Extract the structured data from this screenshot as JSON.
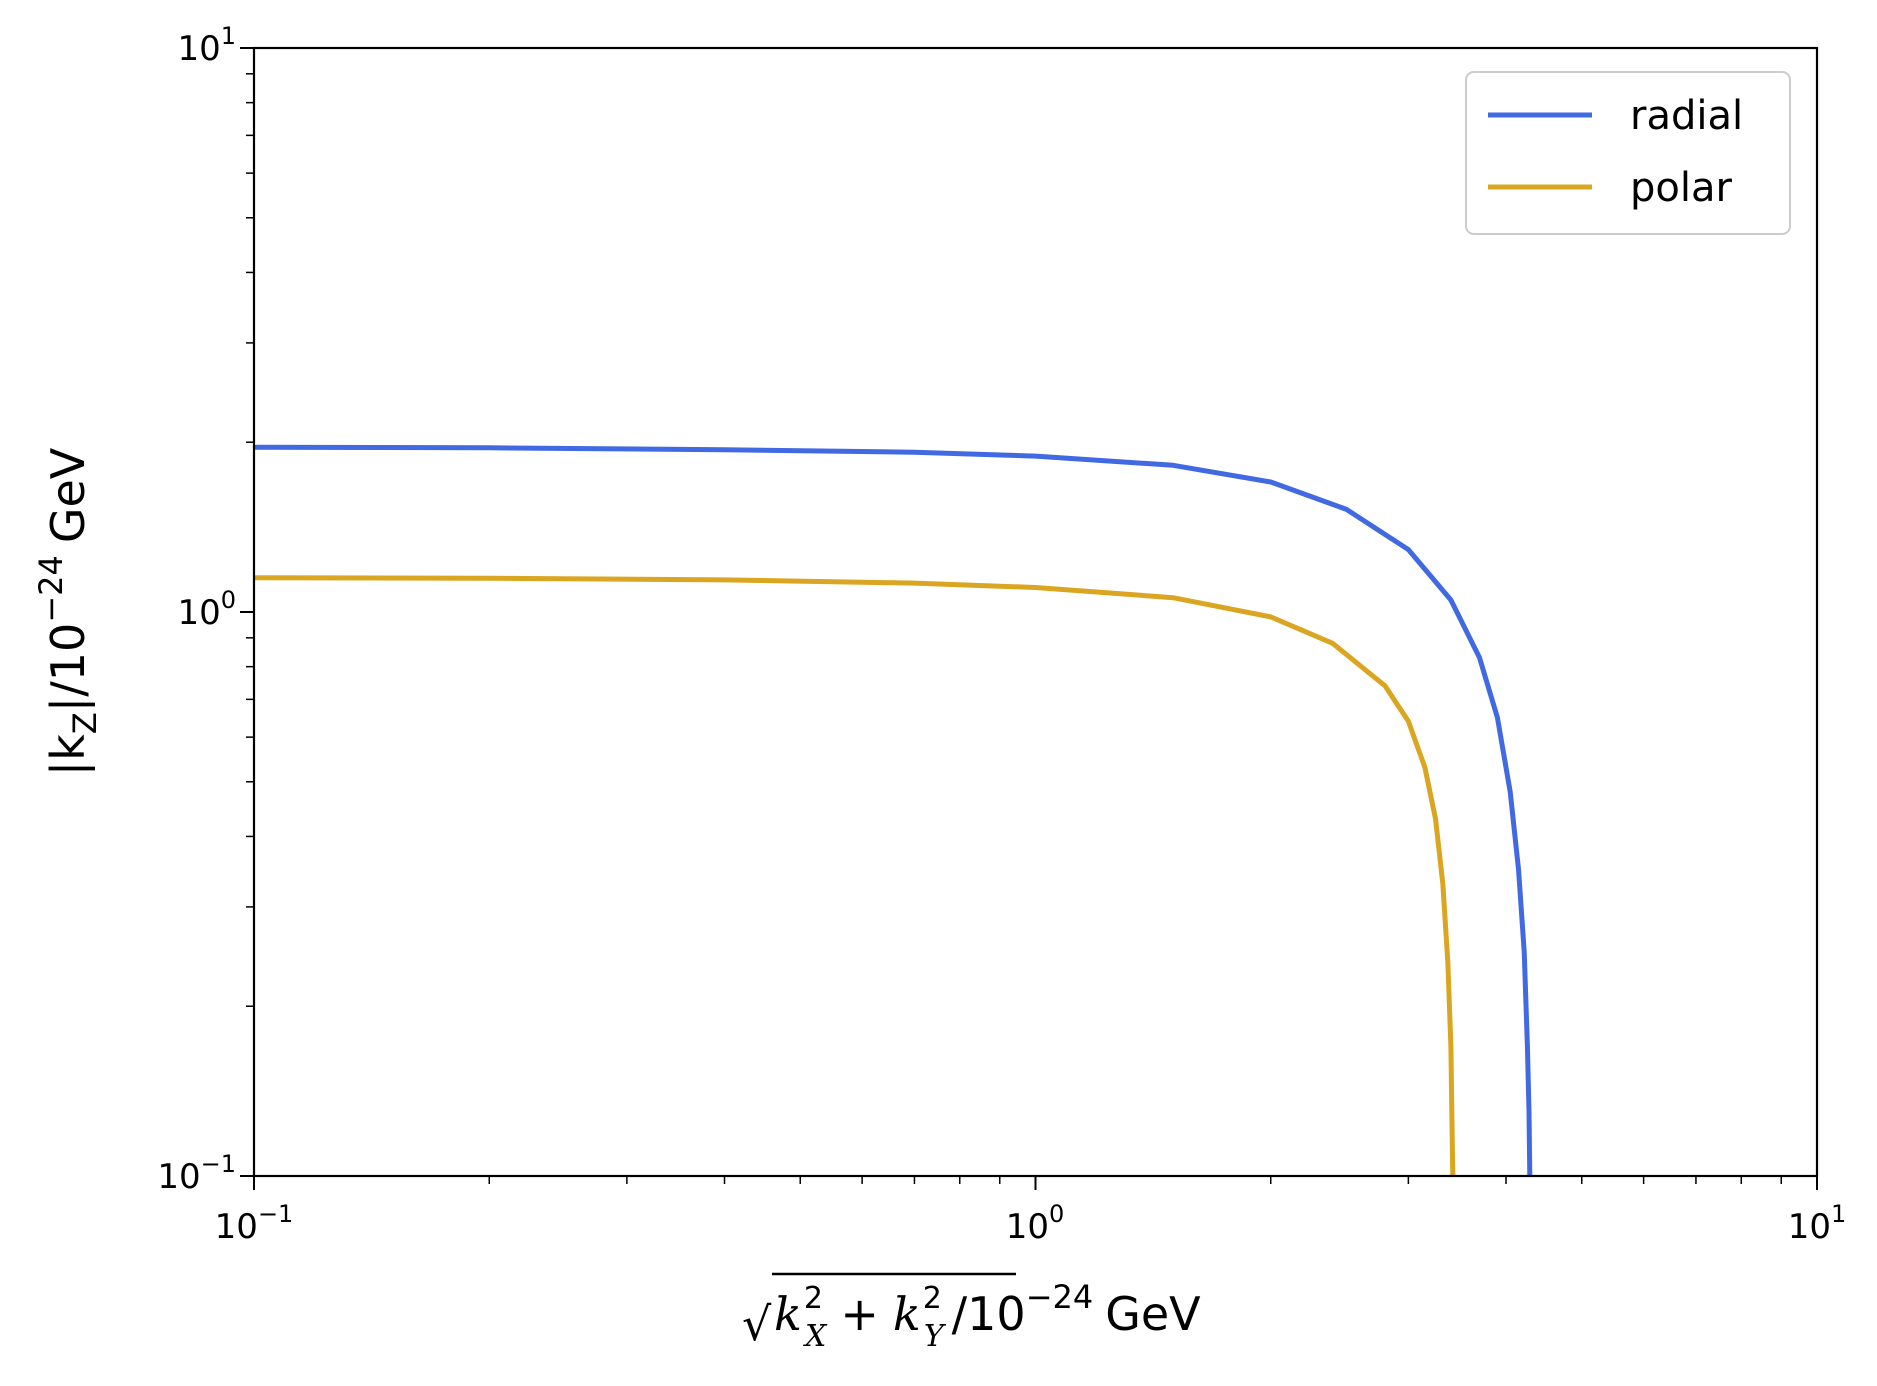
{
  "chart_data": {
    "type": "line",
    "title": "",
    "xscale": "log",
    "yscale": "log",
    "xlim": [
      0.1,
      10
    ],
    "ylim": [
      0.1,
      10
    ],
    "grid": false,
    "legend_position": "top-right",
    "xlabel": {
      "rad": "√",
      "k1": "k",
      "s1": "X",
      "p1": "2",
      "plus": "+",
      "k2": "k",
      "s2": "Y",
      "p2": "2",
      "unit": "/10",
      "exp": "−24",
      "gev": "GeV"
    },
    "ylabel": {
      "pre": "|k",
      "sub": "Z",
      "mid": "|/10",
      "exp": "−24",
      "gev": "GeV"
    },
    "x_ticks": [
      {
        "value": 0.1,
        "base": "10",
        "exp": "−1"
      },
      {
        "value": 1,
        "base": "10",
        "exp": "0"
      },
      {
        "value": 10,
        "base": "10",
        "exp": "1"
      }
    ],
    "y_ticks": [
      {
        "value": 0.1,
        "base": "10",
        "exp": "−1"
      },
      {
        "value": 1,
        "base": "10",
        "exp": "0"
      },
      {
        "value": 10,
        "base": "10",
        "exp": "1"
      }
    ],
    "series": [
      {
        "name": "radial",
        "color": "#4169E1",
        "points": [
          [
            0.1,
            1.96
          ],
          [
            0.2,
            1.955
          ],
          [
            0.4,
            1.94
          ],
          [
            0.7,
            1.92
          ],
          [
            1.0,
            1.89
          ],
          [
            1.5,
            1.82
          ],
          [
            2.0,
            1.7
          ],
          [
            2.5,
            1.52
          ],
          [
            3.0,
            1.29
          ],
          [
            3.4,
            1.05
          ],
          [
            3.7,
            0.83
          ],
          [
            3.9,
            0.65
          ],
          [
            4.05,
            0.48
          ],
          [
            4.15,
            0.35
          ],
          [
            4.22,
            0.25
          ],
          [
            4.26,
            0.17
          ],
          [
            4.28,
            0.13
          ],
          [
            4.29,
            0.1
          ]
        ]
      },
      {
        "name": "polar",
        "color": "#DAA520",
        "points": [
          [
            0.1,
            1.15
          ],
          [
            0.2,
            1.148
          ],
          [
            0.4,
            1.14
          ],
          [
            0.7,
            1.125
          ],
          [
            1.0,
            1.105
          ],
          [
            1.5,
            1.06
          ],
          [
            2.0,
            0.98
          ],
          [
            2.4,
            0.88
          ],
          [
            2.8,
            0.74
          ],
          [
            3.0,
            0.64
          ],
          [
            3.15,
            0.53
          ],
          [
            3.25,
            0.43
          ],
          [
            3.32,
            0.33
          ],
          [
            3.37,
            0.24
          ],
          [
            3.4,
            0.17
          ],
          [
            3.41,
            0.13
          ],
          [
            3.42,
            0.1
          ]
        ]
      }
    ]
  }
}
